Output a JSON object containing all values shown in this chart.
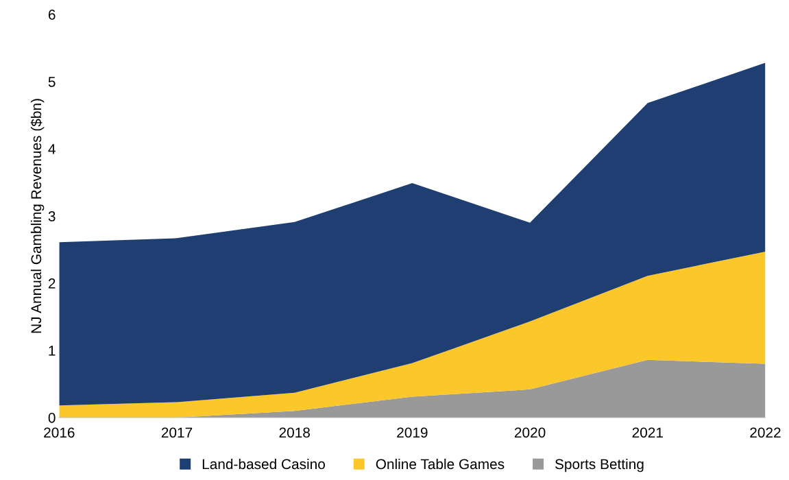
{
  "chart_data": {
    "type": "area",
    "stacked": true,
    "ylabel": "NJ Annual Gambling Revenues ($bn)",
    "x": [
      2016,
      2017,
      2018,
      2019,
      2020,
      2021,
      2022
    ],
    "xlim": [
      2016,
      2022
    ],
    "xticks": [
      2016,
      2017,
      2018,
      2019,
      2020,
      2021,
      2022
    ],
    "ylim": [
      0,
      6
    ],
    "yticks": [
      0,
      1,
      2,
      3,
      4,
      5,
      6
    ],
    "grid": false,
    "legend": "bottom",
    "series": [
      {
        "name": "Sports Betting",
        "color": "#999999",
        "values": [
          0,
          0,
          0.1,
          0.31,
          0.42,
          0.86,
          0.8
        ]
      },
      {
        "name": "Online Table Games",
        "color": "#fcc72a",
        "values": [
          0.18,
          0.23,
          0.27,
          0.5,
          1.01,
          1.25,
          1.67
        ]
      },
      {
        "name": "Land-based Casino",
        "color": "#1f3f73",
        "values": [
          2.43,
          2.44,
          2.54,
          2.68,
          1.47,
          2.57,
          2.81
        ]
      }
    ]
  }
}
